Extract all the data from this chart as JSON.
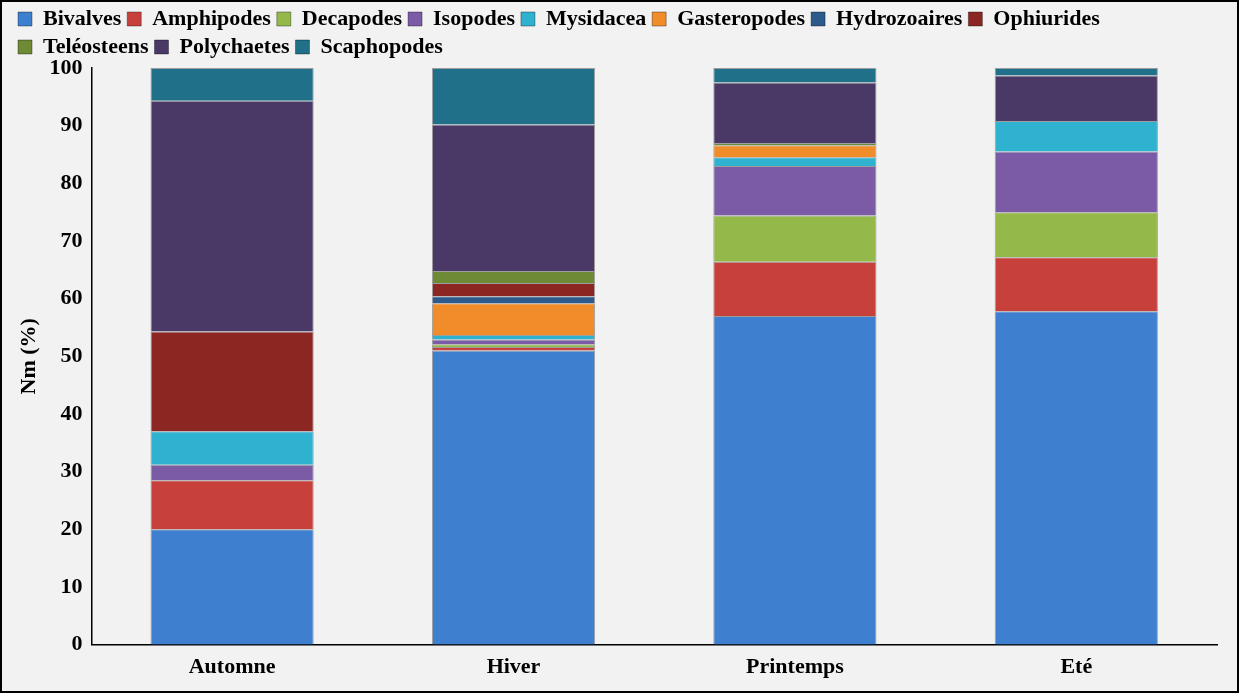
{
  "chart_data": {
    "type": "bar",
    "stacked": true,
    "ylabel": "Nm (%)",
    "categories": [
      "Automne",
      "Hiver",
      "Printemps",
      "Eté"
    ],
    "ylim": [
      0,
      100
    ],
    "yticks": [
      0,
      10,
      20,
      30,
      40,
      50,
      60,
      70,
      80,
      90,
      100
    ],
    "grid": false,
    "legend": "top",
    "series": [
      {
        "name": "Bivalves",
        "color": "#3f7fd0",
        "values": [
          20,
          51,
          57,
          57.8
        ]
      },
      {
        "name": "Amphipodes",
        "color": "#c8403c",
        "values": [
          8.5,
          0.6,
          9.4,
          9.4
        ]
      },
      {
        "name": "Decapodes",
        "color": "#94b84a",
        "values": [
          0,
          0.5,
          8,
          7.8
        ]
      },
      {
        "name": "Isopodes",
        "color": "#7b5aa6",
        "values": [
          2.7,
          0.8,
          8.6,
          10.5
        ]
      },
      {
        "name": "Mysidacea",
        "color": "#2fb2cf",
        "values": [
          5.8,
          0.8,
          1.5,
          5.3
        ]
      },
      {
        "name": "Gasteropodes",
        "color": "#f08c2a",
        "values": [
          0,
          5.5,
          2.1,
          0
        ]
      },
      {
        "name": "Hydrozoaires",
        "color": "#2c5a8c",
        "values": [
          0,
          1.2,
          0,
          0
        ]
      },
      {
        "name": "Ophiurides",
        "color": "#8b2622",
        "values": [
          17.3,
          2.3,
          0,
          0
        ]
      },
      {
        "name": "Teléosteens",
        "color": "#6e8a35",
        "values": [
          0,
          2.1,
          0.4,
          0
        ]
      },
      {
        "name": "Polychaetes",
        "color": "#4a3866",
        "values": [
          40,
          25.4,
          10.5,
          7.9
        ]
      },
      {
        "name": "Scaphopodes",
        "color": "#1f7088",
        "values": [
          5.7,
          9.8,
          2.5,
          1.3
        ]
      }
    ]
  }
}
